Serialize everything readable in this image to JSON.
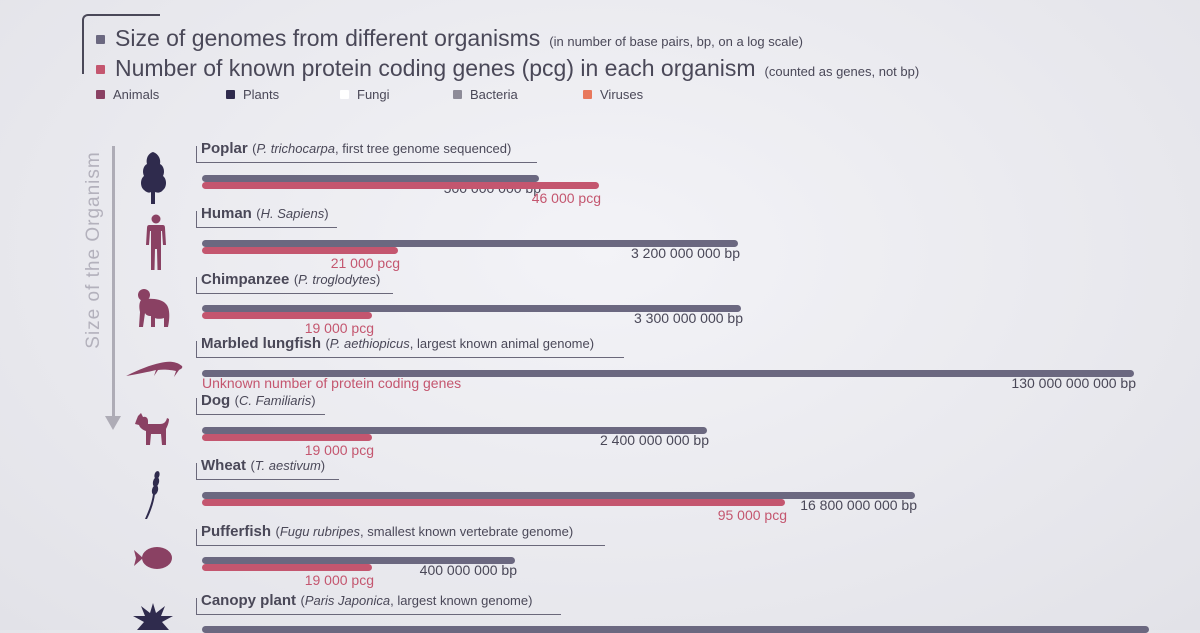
{
  "header": {
    "line1_main": "Size of genomes from different organisms",
    "line1_sub": "(in number of base pairs, bp, on a log scale)",
    "line2_main": "Number of known protein coding genes (pcg) in each organism",
    "line2_sub": "(counted as genes, not bp)"
  },
  "legend": [
    {
      "label": "Animals",
      "color": "#8a4163"
    },
    {
      "label": "Plants",
      "color": "#2f2b4d"
    },
    {
      "label": "Fungi",
      "color": "#ffffff"
    },
    {
      "label": "Bacteria",
      "color": "#8d8b98"
    },
    {
      "label": "Viruses",
      "color": "#e8785c"
    }
  ],
  "axis": {
    "title": "Size of the Organism"
  },
  "colors": {
    "bp_bar": "#6b6880",
    "pcg_bar": "#c4566f",
    "animal_icon": "#8a4163",
    "plant_icon": "#2f2b4d"
  },
  "chart_data": {
    "type": "bar",
    "scale": "log",
    "title": "Size of genomes from different organisms",
    "series": [
      {
        "name": "Size of genomes from different organisms",
        "unit": "bp"
      },
      {
        "name": "Number of known protein coding genes (pcg) in each organism",
        "unit": "pcg"
      }
    ],
    "organisms": [
      {
        "name": "Poplar",
        "sci": "P. trichocarpa",
        "note": ", first tree genome sequenced",
        "icon": "tree-icon",
        "group": "Plants",
        "bp": 500000000,
        "bp_label": "500 000 000 bp",
        "pcg": 46000,
        "pcg_label": "46 000 pcg"
      },
      {
        "name": "Human",
        "sci": "H. Sapiens",
        "note": "",
        "icon": "human-icon",
        "group": "Animals",
        "bp": 3200000000,
        "bp_label": "3 200 000 000 bp",
        "pcg": 21000,
        "pcg_label": "21 000 pcg"
      },
      {
        "name": "Chimpanzee",
        "sci": "P. troglodytes",
        "note": "",
        "icon": "chimpanzee-icon",
        "group": "Animals",
        "bp": 3300000000,
        "bp_label": "3 300 000 000 bp",
        "pcg": 19000,
        "pcg_label": "19 000 pcg"
      },
      {
        "name": "Marbled lungfish",
        "sci": "P. aethiopicus",
        "note": ", largest known animal genome",
        "icon": "lungfish-icon",
        "group": "Animals",
        "bp": 130000000000,
        "bp_label": "130 000 000 000 bp",
        "pcg": null,
        "pcg_label": "Unknown number of protein coding genes"
      },
      {
        "name": "Dog",
        "sci": "C. Familiaris",
        "note": "",
        "icon": "dog-icon",
        "group": "Animals",
        "bp": 2400000000,
        "bp_label": "2 400 000 000 bp",
        "pcg": 19000,
        "pcg_label": "19 000 pcg"
      },
      {
        "name": "Wheat",
        "sci": "T. aestivum",
        "note": "",
        "icon": "wheat-icon",
        "group": "Plants",
        "bp": 16800000000,
        "bp_label": "16 800 000 000 bp",
        "pcg": 95000,
        "pcg_label": "95 000 pcg"
      },
      {
        "name": "Pufferfish",
        "sci": "Fugu rubripes",
        "note": ", smallest known vertebrate genome",
        "icon": "pufferfish-icon",
        "group": "Animals",
        "bp": 400000000,
        "bp_label": "400 000 000 bp",
        "pcg": 19000,
        "pcg_label": "19 000 pcg"
      },
      {
        "name": "Canopy plant",
        "sci": "Paris Japonica",
        "note": ", largest known genome",
        "icon": "canopy-plant-icon",
        "group": "Plants",
        "bp": 150000000000,
        "bp_label": "",
        "pcg": null,
        "pcg_label": ""
      }
    ]
  }
}
